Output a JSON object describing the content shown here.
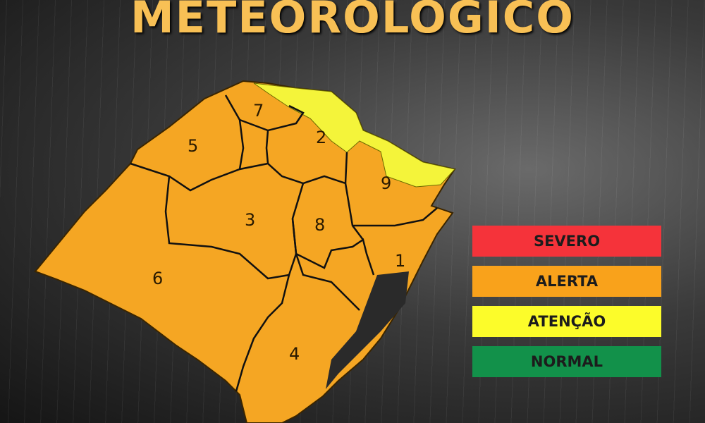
{
  "title": "METEOROLÓGICO",
  "regions": [
    {
      "label": "1",
      "level": "ALERTA"
    },
    {
      "label": "2",
      "level": "ALERTA"
    },
    {
      "label": "3",
      "level": "ALERTA"
    },
    {
      "label": "4",
      "level": "ALERTA"
    },
    {
      "label": "5",
      "level": "ALERTA"
    },
    {
      "label": "6",
      "level": "ALERTA"
    },
    {
      "label": "7",
      "level": "ALERTA"
    },
    {
      "label": "8",
      "level": "ALERTA"
    },
    {
      "label": "9",
      "level": "ALERTA"
    }
  ],
  "legend": [
    {
      "label": "SEVERO",
      "color": "#f5333a"
    },
    {
      "label": "ALERTA",
      "color": "#f9a21b"
    },
    {
      "label": "ATENÇÃO",
      "color": "#fcfc2a"
    },
    {
      "label": "NORMAL",
      "color": "#12914a"
    }
  ],
  "colors": {
    "alerta": "#f5a623",
    "atencao": "#f4f43a",
    "title": "#f8c055"
  }
}
